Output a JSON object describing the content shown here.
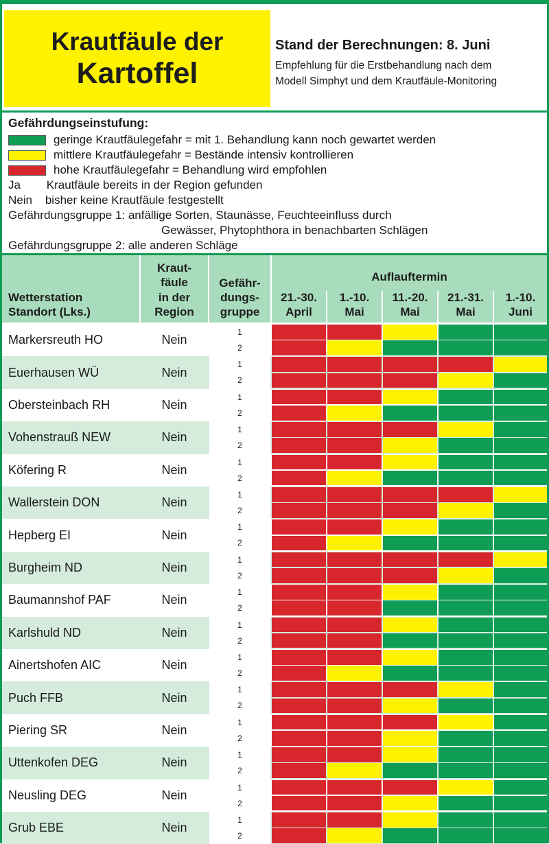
{
  "title": {
    "line1": "Krautfäule der",
    "line2": "Kartoffel"
  },
  "stand": "Stand der Berechnungen: 8. Juni",
  "empfehlung": {
    "line1": "Empfehlung für die Erstbehandlung nach dem",
    "line2": "Modell Simphyt und dem Krautfäule-Monitoring"
  },
  "colors": {
    "green": "#0f9c55",
    "yellow": "#fff200",
    "red": "#d8262d",
    "header_bg": "#a8dcbc",
    "row_alt": "#d5ecdd"
  },
  "legend": {
    "title": "Gefährdungseinstufung:",
    "green": "geringe Krautfäulegefahr = mit 1. Behandlung kann noch gewartet werden",
    "yellow": "mittlere Krautfäulegefahr = Bestände intensiv kontrollieren",
    "red": "hohe Krautfäulegefahr = Behandlung wird empfohlen",
    "ja": "Ja        Krautfäule bereits in der Region gefunden",
    "nein": "Nein    bisher keine Krautfäule festgestellt",
    "gruppe1a": "Gefährdungsgruppe 1: anfällige Sorten, Staunässe, Feuchteeinfluss durch",
    "gruppe1b": "Gewässer, Phytophthora in benachbarten Schlägen",
    "gruppe2": "Gefährdungsgruppe 2: alle anderen Schläge"
  },
  "table": {
    "col_station": [
      "Wetterstation",
      "Standort (Lks.)"
    ],
    "col_krautfaeule": [
      "Kraut-",
      "fäule",
      "in der",
      "Region"
    ],
    "col_gruppe": [
      "Gefähr-",
      "dungs-",
      "gruppe"
    ],
    "auflauf": "Auflauftermin",
    "periods": [
      [
        "21.-30.",
        "April"
      ],
      [
        "1.-10.",
        "Mai"
      ],
      [
        "11.-20.",
        "Mai"
      ],
      [
        "21.-31.",
        "Mai"
      ],
      [
        "1.-10.",
        "Juni"
      ]
    ],
    "rows": [
      {
        "station": "Markersreuth HO",
        "kf": "Nein",
        "g1": "1",
        "g2": "2",
        "r1": [
          "red",
          "red",
          "yellow",
          "green",
          "green"
        ],
        "r2": [
          "red",
          "yellow",
          "green",
          "green",
          "green"
        ]
      },
      {
        "station": "Euerhausen WÜ",
        "kf": "Nein",
        "g1": "1",
        "g2": "2",
        "r1": [
          "red",
          "red",
          "red",
          "red",
          "yellow"
        ],
        "r2": [
          "red",
          "red",
          "red",
          "yellow",
          "green"
        ]
      },
      {
        "station": "Obersteinbach RH",
        "kf": "Nein",
        "g1": "1",
        "g2": "2",
        "r1": [
          "red",
          "red",
          "yellow",
          "green",
          "green"
        ],
        "r2": [
          "red",
          "yellow",
          "green",
          "green",
          "green"
        ]
      },
      {
        "station": "Vohenstrauß  NEW",
        "kf": "Nein",
        "g1": "1",
        "g2": "2",
        "r1": [
          "red",
          "red",
          "red",
          "yellow",
          "green"
        ],
        "r2": [
          "red",
          "red",
          "yellow",
          "green",
          "green"
        ]
      },
      {
        "station": "Köfering R",
        "kf": "Nein",
        "g1": "1",
        "g2": "2",
        "r1": [
          "red",
          "red",
          "yellow",
          "green",
          "green"
        ],
        "r2": [
          "red",
          "yellow",
          "green",
          "green",
          "green"
        ]
      },
      {
        "station": "Wallerstein DON",
        "kf": "Nein",
        "g1": "1",
        "g2": "2",
        "r1": [
          "red",
          "red",
          "red",
          "red",
          "yellow"
        ],
        "r2": [
          "red",
          "red",
          "red",
          "yellow",
          "green"
        ]
      },
      {
        "station": "Hepberg EI",
        "kf": "Nein",
        "g1": "1",
        "g2": "2",
        "r1": [
          "red",
          "red",
          "yellow",
          "green",
          "green"
        ],
        "r2": [
          "red",
          "yellow",
          "green",
          "green",
          "green"
        ]
      },
      {
        "station": "Burgheim ND",
        "kf": "Nein",
        "g1": "1",
        "g2": "2",
        "r1": [
          "red",
          "red",
          "red",
          "red",
          "yellow"
        ],
        "r2": [
          "red",
          "red",
          "red",
          "yellow",
          "green"
        ]
      },
      {
        "station": "Baumannshof PAF",
        "kf": "Nein",
        "g1": "1",
        "g2": "2",
        "r1": [
          "red",
          "red",
          "yellow",
          "green",
          "green"
        ],
        "r2": [
          "red",
          "red",
          "green",
          "green",
          "green"
        ]
      },
      {
        "station": "Karlshuld ND",
        "kf": "Nein",
        "g1": "1",
        "g2": "2",
        "r1": [
          "red",
          "red",
          "yellow",
          "green",
          "green"
        ],
        "r2": [
          "red",
          "red",
          "green",
          "green",
          "green"
        ]
      },
      {
        "station": "Ainertshofen AIC",
        "kf": "Nein",
        "g1": "1",
        "g2": "2",
        "r1": [
          "red",
          "red",
          "yellow",
          "green",
          "green"
        ],
        "r2": [
          "red",
          "yellow",
          "green",
          "green",
          "green"
        ]
      },
      {
        "station": "Puch FFB",
        "kf": "Nein",
        "g1": "1",
        "g2": "2",
        "r1": [
          "red",
          "red",
          "red",
          "yellow",
          "green"
        ],
        "r2": [
          "red",
          "red",
          "yellow",
          "green",
          "green"
        ]
      },
      {
        "station": "Piering SR",
        "kf": "Nein",
        "g1": "1",
        "g2": "2",
        "r1": [
          "red",
          "red",
          "red",
          "yellow",
          "green"
        ],
        "r2": [
          "red",
          "red",
          "yellow",
          "green",
          "green"
        ]
      },
      {
        "station": "Uttenkofen DEG",
        "kf": "Nein",
        "g1": "1",
        "g2": "2",
        "r1": [
          "red",
          "red",
          "yellow",
          "green",
          "green"
        ],
        "r2": [
          "red",
          "yellow",
          "green",
          "green",
          "green"
        ]
      },
      {
        "station": "Neusling DEG",
        "kf": "Nein",
        "g1": "1",
        "g2": "2",
        "r1": [
          "red",
          "red",
          "red",
          "yellow",
          "green"
        ],
        "r2": [
          "red",
          "red",
          "yellow",
          "green",
          "green"
        ]
      },
      {
        "station": "Grub EBE",
        "kf": "Nein",
        "g1": "1",
        "g2": "2",
        "r1": [
          "red",
          "red",
          "yellow",
          "green",
          "green"
        ],
        "r2": [
          "red",
          "yellow",
          "green",
          "green",
          "green"
        ]
      }
    ]
  }
}
